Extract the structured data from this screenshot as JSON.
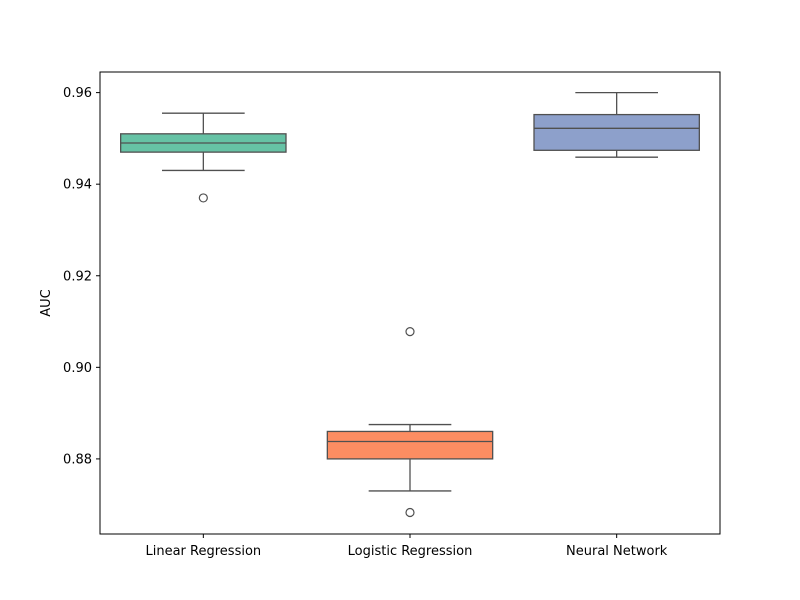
{
  "chart_data": {
    "type": "box",
    "title": "",
    "xlabel": "",
    "ylabel": "AUC",
    "ylim": [
      0.8636,
      0.9645
    ],
    "yticks": [
      0.88,
      0.9,
      0.92,
      0.94,
      0.96
    ],
    "ytick_labels": [
      "0.88",
      "0.90",
      "0.92",
      "0.94",
      "0.96"
    ],
    "grid": false,
    "legend": "none",
    "categories": [
      "Linear Regression",
      "Logistic Regression",
      "Neural Network"
    ],
    "boxes": [
      {
        "category": "Linear Regression",
        "color": "#66c2a5",
        "whisker_low": 0.943,
        "q1": 0.947,
        "median": 0.949,
        "q3": 0.951,
        "whisker_high": 0.9555,
        "outliers": [
          0.937
        ]
      },
      {
        "category": "Logistic Regression",
        "color": "#fc8d62",
        "whisker_low": 0.873,
        "q1": 0.88,
        "median": 0.8838,
        "q3": 0.886,
        "whisker_high": 0.8875,
        "outliers": [
          0.9078,
          0.8683
        ]
      },
      {
        "category": "Neural Network",
        "color": "#8da0cb",
        "whisker_low": 0.9459,
        "q1": 0.9474,
        "median": 0.9522,
        "q3": 0.9552,
        "whisker_high": 0.96,
        "outliers": []
      }
    ]
  }
}
